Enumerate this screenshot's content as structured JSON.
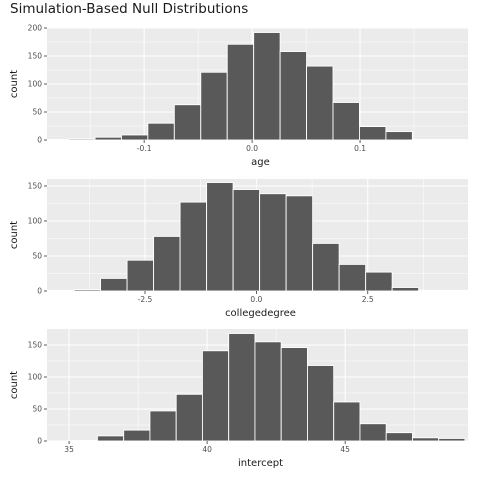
{
  "title": "Simulation-Based Null Distributions",
  "colors": {
    "panel_bg": "#ebebeb",
    "grid_major": "#ffffff",
    "bar_fill": "#595959",
    "bar_outline": "#ffffff",
    "text": "#1a1a1a",
    "tick_text": "#4d4d4d"
  },
  "chart_data": [
    {
      "type": "bar",
      "title": "age",
      "xlabel": "age",
      "ylabel": "count",
      "xlim": [
        -0.19,
        0.2
      ],
      "ylim": [
        0,
        200
      ],
      "xticks": [
        -0.1,
        0.0,
        0.1
      ],
      "xtick_labels": [
        "-0.1",
        "0.0",
        "0.1"
      ],
      "yticks": [
        0,
        50,
        100,
        150,
        200
      ],
      "ytick_labels": [
        "0",
        "50",
        "100",
        "150",
        "200"
      ],
      "grid": true,
      "bin_width": 0.0245,
      "bin_centers": [
        -0.1823,
        -0.1578,
        -0.1333,
        -0.1088,
        -0.0843,
        -0.0598,
        -0.0353,
        -0.0108,
        0.0137,
        0.0382,
        0.0627,
        0.0872,
        0.1117,
        0.1362,
        0.1607,
        0.1852
      ],
      "values": [
        1,
        2,
        5,
        9,
        30,
        63,
        121,
        171,
        192,
        158,
        132,
        67,
        24,
        15,
        1,
        1
      ]
    },
    {
      "type": "bar",
      "title": "collegedegree",
      "xlabel": "collegedegree",
      "ylabel": "count",
      "xlim": [
        -4.7,
        4.75
      ],
      "ylim": [
        0,
        160
      ],
      "xticks": [
        -2.5,
        0.0,
        2.5
      ],
      "xtick_labels": [
        "-2.5",
        "0.0",
        "2.5"
      ],
      "yticks": [
        0,
        50,
        100,
        150
      ],
      "ytick_labels": [
        "0",
        "50",
        "100",
        "150"
      ],
      "grid": true,
      "bin_width": 0.595,
      "bin_centers": [
        -4.39,
        -3.795,
        -3.2,
        -2.605,
        -2.01,
        -1.415,
        -0.82,
        -0.225,
        0.37,
        0.965,
        1.56,
        2.155,
        2.75,
        3.345,
        3.94,
        4.535
      ],
      "values": [
        1,
        2,
        18,
        44,
        78,
        127,
        155,
        145,
        139,
        136,
        68,
        38,
        27,
        5,
        1,
        1
      ]
    },
    {
      "type": "bar",
      "title": "intercept",
      "xlabel": "intercept",
      "ylabel": "count",
      "xlim": [
        34.2,
        49.45
      ],
      "ylim": [
        0,
        175
      ],
      "xticks": [
        35,
        40,
        45
      ],
      "xtick_labels": [
        "35",
        "40",
        "45"
      ],
      "yticks": [
        0,
        50,
        100,
        150
      ],
      "ytick_labels": [
        "0",
        "50",
        "100",
        "150"
      ],
      "grid": true,
      "bin_width": 0.951,
      "bin_centers": [
        34.6,
        35.551,
        36.502,
        37.453,
        38.404,
        39.355,
        40.306,
        41.257,
        42.208,
        43.159,
        44.11,
        45.061,
        46.012,
        46.963,
        47.914,
        48.865
      ],
      "values": [
        0,
        1,
        8,
        17,
        47,
        73,
        141,
        168,
        155,
        146,
        118,
        61,
        27,
        13,
        5,
        4
      ]
    }
  ]
}
